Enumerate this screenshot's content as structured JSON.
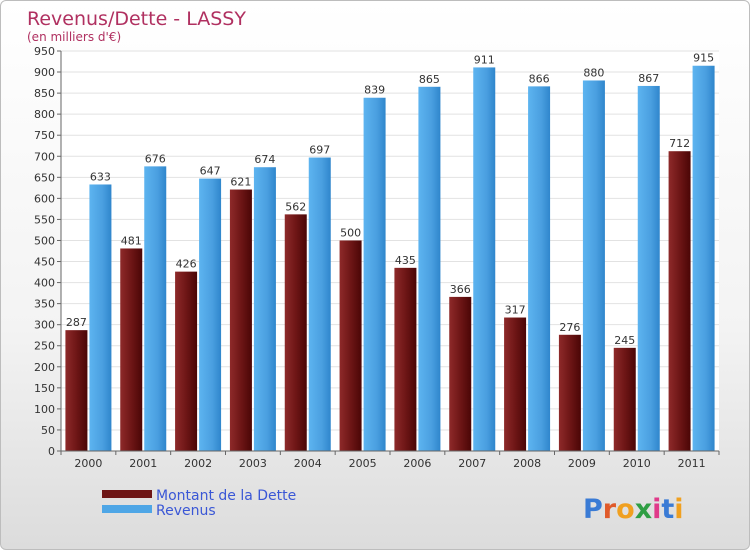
{
  "chart_data": {
    "type": "bar",
    "title": "Revenus/Dette - LASSY",
    "subtitle": "(en milliers d'€)",
    "categories": [
      "2000",
      "2001",
      "2002",
      "2003",
      "2004",
      "2005",
      "2006",
      "2007",
      "2008",
      "2009",
      "2010",
      "2011"
    ],
    "series": [
      {
        "name": "Montant de la Dette",
        "values": [
          287,
          481,
          426,
          621,
          562,
          500,
          435,
          366,
          317,
          276,
          245,
          712
        ],
        "color": "#7a1c1c"
      },
      {
        "name": "Revenus",
        "values": [
          633,
          676,
          647,
          674,
          697,
          839,
          865,
          911,
          866,
          880,
          867,
          915
        ],
        "color": "#4ea6e6"
      }
    ],
    "ylim": [
      0,
      950
    ],
    "yticks": [
      0,
      50,
      100,
      150,
      200,
      250,
      300,
      350,
      400,
      450,
      500,
      550,
      600,
      650,
      700,
      750,
      800,
      850,
      900,
      950
    ],
    "grid": true,
    "legend_position": "bottom-left"
  },
  "logo": {
    "text": "Proxiti"
  }
}
